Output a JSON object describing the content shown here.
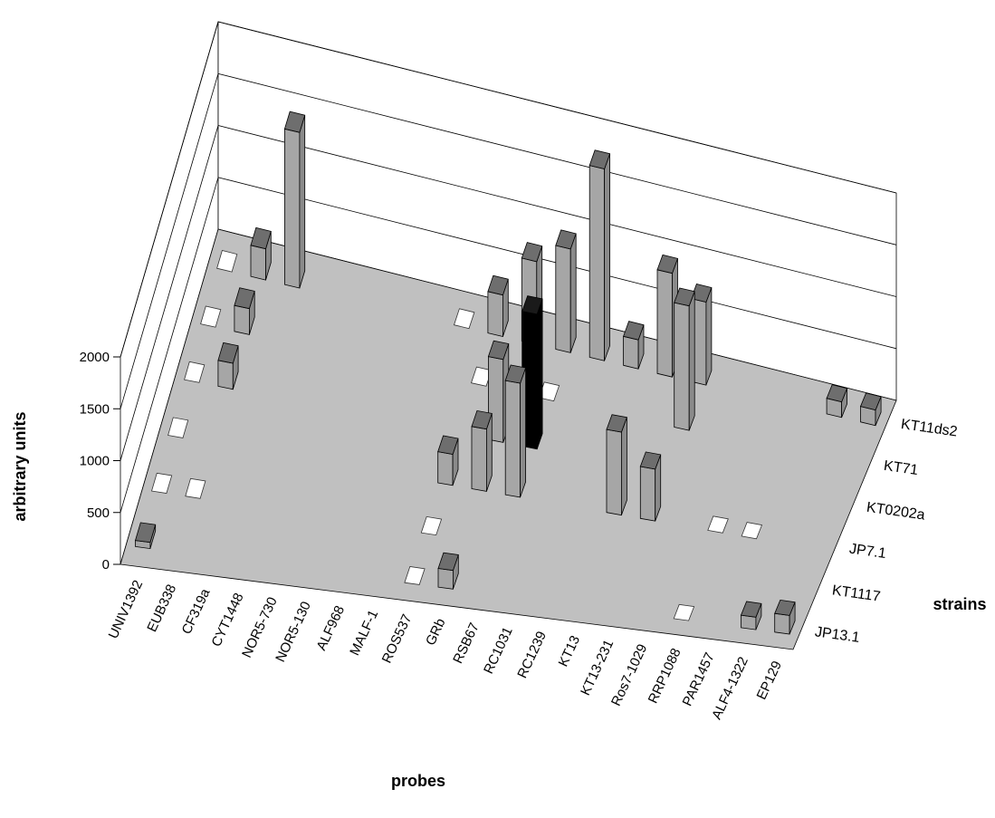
{
  "chart_data": {
    "type": "bar3d",
    "xlabel": "probes",
    "ylabel": "arbitrary units",
    "zlabel": "strains",
    "zlim": [
      0,
      2000
    ],
    "zticks": [
      0,
      500,
      1000,
      1500,
      2000
    ],
    "probes": [
      "UNIV1392",
      "EUB338",
      "CF319a",
      "CYT1448",
      "NOR5-730",
      "NOR5-130",
      "ALF968",
      "MALF-1",
      "ROS537",
      "GRb",
      "RSB67",
      "RC1031",
      "RC1239",
      "KT13",
      "KT13-231",
      "Ros7-1029",
      "RRP1088",
      "PAR1457",
      "ALF4-1322",
      "EP129"
    ],
    "strains": [
      "JP13.1",
      "KT1117",
      "JP7.1",
      "KT0202a",
      "KT71",
      "KT11ds2"
    ],
    "highlight_color": "#000000",
    "bar_color": "#a6a6a6",
    "floor_color": "#c0c0c0",
    "bars": [
      {
        "probe": "EUB338",
        "strain": "KT11ds2",
        "value": 300
      },
      {
        "probe": "CF319a",
        "strain": "KT11ds2",
        "value": 1500
      },
      {
        "probe": "EUB338",
        "strain": "KT71",
        "value": 250
      },
      {
        "probe": "EUB338",
        "strain": "KT0202a",
        "value": 250
      },
      {
        "probe": "UNIV1392",
        "strain": "JP13.1",
        "value": 60
      },
      {
        "probe": "ROS537",
        "strain": "KT11ds2",
        "value": 400
      },
      {
        "probe": "GRb",
        "strain": "KT11ds2",
        "value": 800
      },
      {
        "probe": "RSB67",
        "strain": "KT11ds2",
        "value": 1000
      },
      {
        "probe": "RC1031",
        "strain": "KT11ds2",
        "value": 1850
      },
      {
        "probe": "RC1239",
        "strain": "KT11ds2",
        "value": 280
      },
      {
        "probe": "KT13",
        "strain": "KT11ds2",
        "value": 1000
      },
      {
        "probe": "KT13-231",
        "strain": "KT11ds2",
        "value": 800
      },
      {
        "probe": "GRb",
        "strain": "KT0202a",
        "value": 800
      },
      {
        "probe": "GRb",
        "strain": "JP7.1",
        "value": 600
      },
      {
        "probe": "ROS537",
        "strain": "JP7.1",
        "value": 300
      },
      {
        "probe": "RSB67",
        "strain": "KT0202a",
        "value": 1300,
        "highlight": true
      },
      {
        "probe": "RSB67",
        "strain": "JP7.1",
        "value": 1100
      },
      {
        "probe": "GRb",
        "strain": "JP13.1",
        "value": 180
      },
      {
        "probe": "KT13-231",
        "strain": "KT71",
        "value": 1200
      },
      {
        "probe": "KT13",
        "strain": "JP7.1",
        "value": 800
      },
      {
        "probe": "KT13-231",
        "strain": "JP7.1",
        "value": 500
      },
      {
        "probe": "EP129",
        "strain": "KT11ds2",
        "value": 150
      },
      {
        "probe": "ALF4-1322",
        "strain": "KT11ds2",
        "value": 150
      },
      {
        "probe": "EP129",
        "strain": "JP13.1",
        "value": 180
      },
      {
        "probe": "ALF4-1322",
        "strain": "JP13.1",
        "value": 120
      }
    ],
    "zero_cells": [
      {
        "probe": "UNIV1392",
        "strain": "KT11ds2"
      },
      {
        "probe": "UNIV1392",
        "strain": "KT71"
      },
      {
        "probe": "UNIV1392",
        "strain": "KT0202a"
      },
      {
        "probe": "UNIV1392",
        "strain": "JP7.1"
      },
      {
        "probe": "UNIV1392",
        "strain": "KT1117"
      },
      {
        "probe": "EUB338",
        "strain": "KT1117"
      },
      {
        "probe": "MALF-1",
        "strain": "KT11ds2"
      },
      {
        "probe": "ROS537",
        "strain": "KT71"
      },
      {
        "probe": "ROS537",
        "strain": "KT1117"
      },
      {
        "probe": "ROS537",
        "strain": "JP13.1"
      },
      {
        "probe": "RSB67",
        "strain": "KT71"
      },
      {
        "probe": "RRP1088",
        "strain": "JP7.1"
      },
      {
        "probe": "PAR1457",
        "strain": "JP7.1"
      },
      {
        "probe": "RRP1088",
        "strain": "JP13.1"
      }
    ]
  }
}
